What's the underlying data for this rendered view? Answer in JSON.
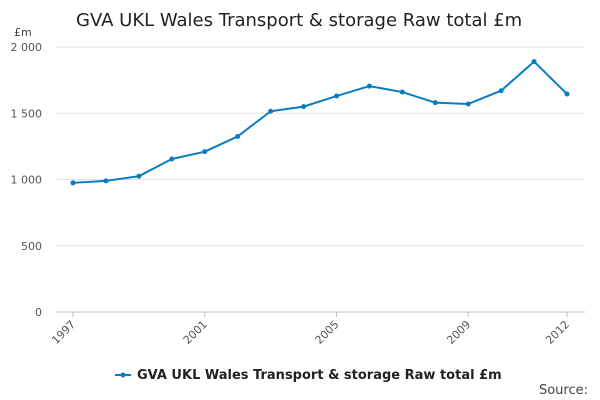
{
  "chart_data": {
    "type": "line",
    "title": "GVA UKL Wales Transport & storage Raw total £m",
    "ylabel": "£m",
    "xlabel": "",
    "x": [
      1997,
      1998,
      1999,
      2000,
      2001,
      2002,
      2003,
      2004,
      2005,
      2006,
      2007,
      2008,
      2009,
      2010,
      2011,
      2012
    ],
    "series": [
      {
        "name": "GVA UKL Wales Transport & storage Raw total £m",
        "color": "#0b7cbf",
        "values": [
          975,
          990,
          1025,
          1155,
          1210,
          1325,
          1515,
          1550,
          1630,
          1705,
          1660,
          1580,
          1570,
          1670,
          1890,
          1645
        ]
      }
    ],
    "ylim": [
      0,
      2000
    ],
    "yticks": [
      0,
      500,
      1000,
      1500,
      2000
    ],
    "ytick_labels": [
      "0",
      "500",
      "1 000",
      "1 500",
      "2 000"
    ],
    "xticks": [
      1997,
      2001,
      2005,
      2009,
      2012
    ],
    "xtick_labels": [
      "1997",
      "2001",
      "2005",
      "2009",
      "2012"
    ],
    "grid": true,
    "legend_position": "bottom-center",
    "source_label": "Source:"
  }
}
